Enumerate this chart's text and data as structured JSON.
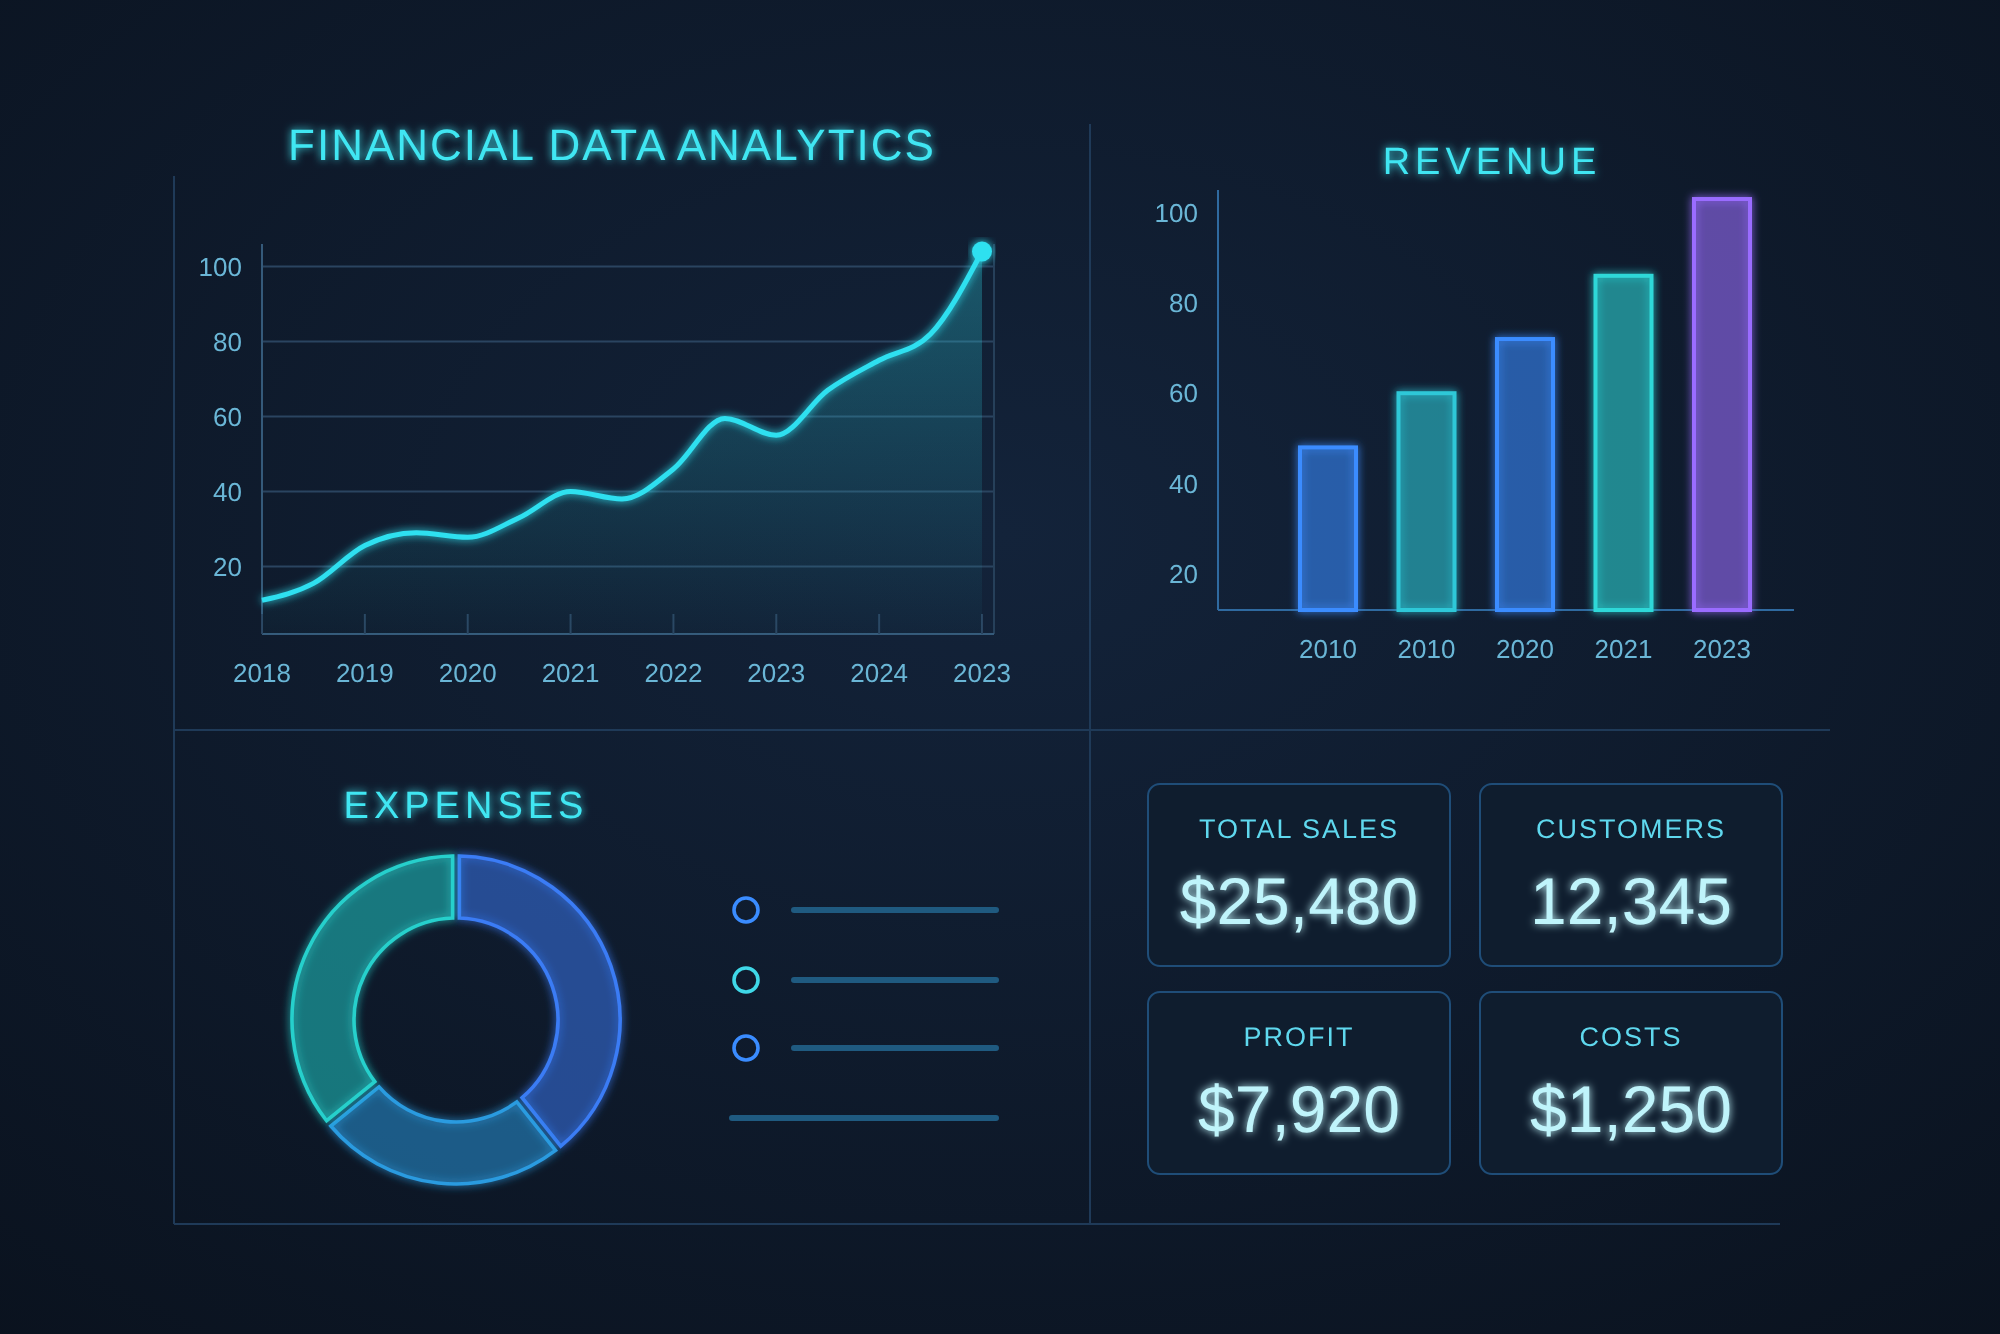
{
  "chart_data": [
    {
      "type": "area",
      "title": "FINANCIAL DATA ANALYTICS",
      "categories": [
        "2018",
        null,
        "2019",
        null,
        "2020",
        null,
        "2021",
        null,
        "2022",
        null,
        "2023",
        null,
        "2024",
        null,
        "2023"
      ],
      "series": [
        {
          "type": "area",
          "color": "#2fe0f0",
          "values": [
            11,
            15.5,
            25.6,
            29,
            27.8,
            33,
            40,
            38,
            46,
            59.5,
            55,
            67,
            75,
            82,
            104
          ]
        },
        {
          "type": "scatter",
          "color": "#2fe0f0",
          "values": [
            null,
            null,
            null,
            null,
            null,
            null,
            null,
            null,
            null,
            null,
            null,
            null,
            null,
            null,
            104
          ]
        }
      ],
      "ylim": [
        2,
        106
      ],
      "yticks": [
        20,
        40,
        60,
        80,
        100
      ],
      "grid": "y"
    },
    {
      "type": "bar",
      "title": "REVENUE",
      "categories": [
        "2010",
        "2010",
        "2020",
        "2021",
        "2023"
      ],
      "values": [
        48,
        60,
        72,
        86,
        103
      ],
      "colors": [
        "#3a8cff",
        "#2fc8d8",
        "#3a8cff",
        "#2fd8d8",
        "#9a6cff"
      ],
      "ylim": [
        12,
        105
      ],
      "yticks": [
        20,
        40,
        60,
        80,
        100
      ]
    },
    {
      "type": "donut",
      "title": "EXPENSES",
      "values": [
        39.4,
        24.7,
        35.9
      ],
      "colors": [
        "#3a7cf5",
        "#2a9be0",
        "#26d0cc"
      ]
    },
    {
      "type": "other",
      "annotations": [
        "TOTAL SALES",
        "$25,480",
        "CUSTOMERS",
        "12,345",
        "PROFIT",
        "$7,920",
        "COSTS",
        "$1,250"
      ]
    }
  ]
}
